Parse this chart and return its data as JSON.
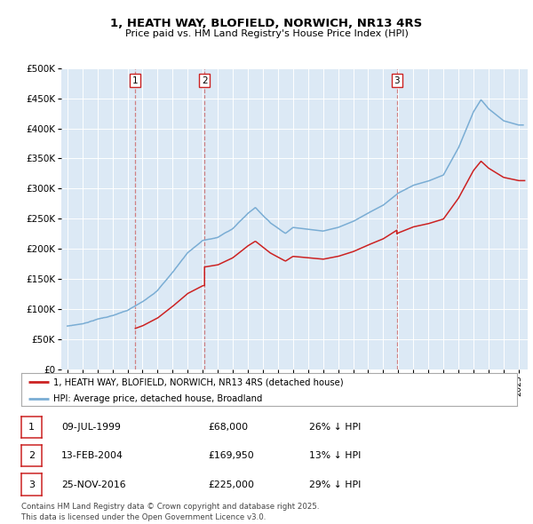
{
  "title": "1, HEATH WAY, BLOFIELD, NORWICH, NR13 4RS",
  "subtitle": "Price paid vs. HM Land Registry's House Price Index (HPI)",
  "background_color": "#dce9f5",
  "hpi_color": "#7aadd4",
  "price_color": "#cc2222",
  "vline_color": "#cc6666",
  "purchases": [
    {
      "label": "1",
      "date_x": 1999.52,
      "price": 68000
    },
    {
      "label": "2",
      "date_x": 2004.12,
      "price": 169950
    },
    {
      "label": "3",
      "date_x": 2016.9,
      "price": 225000
    }
  ],
  "legend_label_price": "1, HEATH WAY, BLOFIELD, NORWICH, NR13 4RS (detached house)",
  "legend_label_hpi": "HPI: Average price, detached house, Broadland",
  "footer_text": "Contains HM Land Registry data © Crown copyright and database right 2025.\nThis data is licensed under the Open Government Licence v3.0.",
  "table_rows": [
    {
      "num": "1",
      "date": "09-JUL-1999",
      "price": "£68,000",
      "info": "26% ↓ HPI"
    },
    {
      "num": "2",
      "date": "13-FEB-2004",
      "price": "£169,950",
      "info": "13% ↓ HPI"
    },
    {
      "num": "3",
      "date": "25-NOV-2016",
      "price": "£225,000",
      "info": "29% ↓ HPI"
    }
  ],
  "ylim": [
    0,
    500000
  ],
  "xlim": [
    1994.6,
    2025.6
  ]
}
